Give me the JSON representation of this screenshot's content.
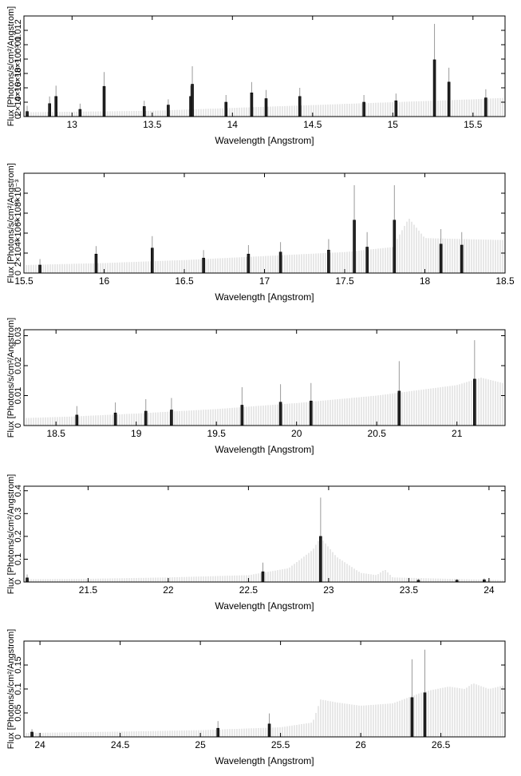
{
  "chart_data": [
    {
      "type": "bar",
      "xlabel": "Wavelength [Angstrom]",
      "ylabel": "Flux [Photons/s/cm²/Angstrom]",
      "xlim": [
        12.7,
        15.7
      ],
      "ylim": [
        0,
        0.014
      ],
      "xticks": [
        13,
        13.5,
        14,
        14.5,
        15,
        15.5
      ],
      "xtick_labels": [
        "13",
        "13.5",
        "14",
        "14.5",
        "15",
        "15.5"
      ],
      "yticks": [
        0,
        0.002,
        0.004,
        0.006,
        0.008,
        0.01,
        0.012
      ],
      "ytick_labels": [
        "0",
        "2×10⁻³",
        "4×10⁻³",
        "6×10⁻³",
        "8×10⁻³",
        "0.01",
        "0.012"
      ],
      "model": [
        [
          12.7,
          0.0006
        ],
        [
          13.5,
          0.0008
        ],
        [
          14.0,
          0.0012
        ],
        [
          14.5,
          0.0016
        ],
        [
          15.0,
          0.002
        ],
        [
          15.5,
          0.0024
        ],
        [
          15.7,
          0.0026
        ]
      ],
      "points": [
        {
          "x": 12.72,
          "y": 0.0007,
          "err": 0.0008
        },
        {
          "x": 12.86,
          "y": 0.0018,
          "err": 0.001
        },
        {
          "x": 12.9,
          "y": 0.0028,
          "err": 0.0015
        },
        {
          "x": 13.05,
          "y": 0.001,
          "err": 0.0008
        },
        {
          "x": 13.2,
          "y": 0.0042,
          "err": 0.002
        },
        {
          "x": 13.45,
          "y": 0.0014,
          "err": 0.0008
        },
        {
          "x": 13.6,
          "y": 0.0016,
          "err": 0.0008
        },
        {
          "x": 13.74,
          "y": 0.0028,
          "err": 0.0015
        },
        {
          "x": 13.75,
          "y": 0.0045,
          "err": 0.0025
        },
        {
          "x": 13.96,
          "y": 0.002,
          "err": 0.001
        },
        {
          "x": 14.12,
          "y": 0.0033,
          "err": 0.0015
        },
        {
          "x": 14.21,
          "y": 0.0025,
          "err": 0.0012
        },
        {
          "x": 14.42,
          "y": 0.0028,
          "err": 0.0012
        },
        {
          "x": 14.82,
          "y": 0.002,
          "err": 0.001
        },
        {
          "x": 15.02,
          "y": 0.0022,
          "err": 0.001
        },
        {
          "x": 15.26,
          "y": 0.0079,
          "err": 0.005
        },
        {
          "x": 15.35,
          "y": 0.0048,
          "err": 0.002
        },
        {
          "x": 15.58,
          "y": 0.0026,
          "err": 0.0012
        }
      ]
    },
    {
      "type": "bar",
      "xlabel": "Wavelength [Angstrom]",
      "ylabel": "Flux [Photons/s/cm²/Angstrom]",
      "xlim": [
        15.5,
        18.5
      ],
      "ylim": [
        0,
        0.01
      ],
      "xticks": [
        15.5,
        16,
        16.5,
        17,
        17.5,
        18,
        18.5
      ],
      "xtick_labels": [
        "15.5",
        "16",
        "16.5",
        "17",
        "17.5",
        "18",
        "18.5"
      ],
      "yticks": [
        0,
        0.002,
        0.004,
        0.006,
        0.008
      ],
      "ytick_labels": [
        "0",
        "2×10⁻³",
        "4×10⁻³",
        "6×10⁻³",
        "8×10⁻³"
      ],
      "model": [
        [
          15.5,
          0.0008
        ],
        [
          16.0,
          0.001
        ],
        [
          16.5,
          0.0013
        ],
        [
          17.0,
          0.0017
        ],
        [
          17.5,
          0.0021
        ],
        [
          17.8,
          0.0026
        ],
        [
          17.9,
          0.0055
        ],
        [
          18.0,
          0.0035
        ],
        [
          18.5,
          0.0033
        ]
      ],
      "points": [
        {
          "x": 15.6,
          "y": 0.0008,
          "err": 0.0006
        },
        {
          "x": 15.95,
          "y": 0.0019,
          "err": 0.0008
        },
        {
          "x": 16.3,
          "y": 0.0025,
          "err": 0.0012
        },
        {
          "x": 16.62,
          "y": 0.0015,
          "err": 0.0008
        },
        {
          "x": 16.9,
          "y": 0.0019,
          "err": 0.0009
        },
        {
          "x": 17.1,
          "y": 0.0021,
          "err": 0.001
        },
        {
          "x": 17.4,
          "y": 0.0023,
          "err": 0.0011
        },
        {
          "x": 17.56,
          "y": 0.0053,
          "err": 0.0035
        },
        {
          "x": 17.64,
          "y": 0.0026,
          "err": 0.0015
        },
        {
          "x": 17.81,
          "y": 0.0053,
          "err": 0.0035
        },
        {
          "x": 18.1,
          "y": 0.0029,
          "err": 0.0015
        },
        {
          "x": 18.23,
          "y": 0.0028,
          "err": 0.0013
        }
      ]
    },
    {
      "type": "bar",
      "xlabel": "Wavelength [Angstrom]",
      "ylabel": "Flux [Photons/s/cm²/Angstrom]",
      "xlim": [
        18.3,
        21.3
      ],
      "ylim": [
        0,
        0.032
      ],
      "xticks": [
        18.5,
        19,
        19.5,
        20,
        20.5,
        21
      ],
      "xtick_labels": [
        "18.5",
        "19",
        "19.5",
        "20",
        "20.5",
        "21"
      ],
      "yticks": [
        0,
        0.01,
        0.02,
        0.03
      ],
      "ytick_labels": [
        "0",
        "0.01",
        "0.02",
        "0.03"
      ],
      "model": [
        [
          18.3,
          0.0025
        ],
        [
          18.6,
          0.003
        ],
        [
          19.0,
          0.004
        ],
        [
          19.5,
          0.0055
        ],
        [
          20.0,
          0.0075
        ],
        [
          20.5,
          0.01
        ],
        [
          21.0,
          0.0135
        ],
        [
          21.15,
          0.016
        ],
        [
          21.3,
          0.014
        ]
      ],
      "points": [
        {
          "x": 18.63,
          "y": 0.0035,
          "err": 0.003
        },
        {
          "x": 18.87,
          "y": 0.0042,
          "err": 0.0035
        },
        {
          "x": 19.06,
          "y": 0.0048,
          "err": 0.004
        },
        {
          "x": 19.22,
          "y": 0.0052,
          "err": 0.004
        },
        {
          "x": 19.66,
          "y": 0.0068,
          "err": 0.006
        },
        {
          "x": 19.9,
          "y": 0.0078,
          "err": 0.006
        },
        {
          "x": 20.09,
          "y": 0.0082,
          "err": 0.006
        },
        {
          "x": 20.64,
          "y": 0.0115,
          "err": 0.01
        },
        {
          "x": 21.11,
          "y": 0.0155,
          "err": 0.013
        }
      ]
    },
    {
      "type": "bar",
      "xlabel": "Wavelength [Angstrom]",
      "ylabel": "Flux [Photons/s/cm²/Angstrom]",
      "xlim": [
        21.1,
        24.1
      ],
      "ylim": [
        0,
        0.42
      ],
      "xticks": [
        21.5,
        22,
        22.5,
        23,
        23.5,
        24
      ],
      "xtick_labels": [
        "21.5",
        "22",
        "22.5",
        "23",
        "23.5",
        "24"
      ],
      "yticks": [
        0,
        0.1,
        0.2,
        0.3,
        0.4
      ],
      "ytick_labels": [
        "0",
        "0.1",
        "0.2",
        "0.3",
        "0.4"
      ],
      "model": [
        [
          21.1,
          0.012
        ],
        [
          21.5,
          0.014
        ],
        [
          22.0,
          0.02
        ],
        [
          22.5,
          0.03
        ],
        [
          22.75,
          0.06
        ],
        [
          22.9,
          0.14
        ],
        [
          22.95,
          0.195
        ],
        [
          23.05,
          0.11
        ],
        [
          23.2,
          0.04
        ],
        [
          23.3,
          0.03
        ],
        [
          23.35,
          0.055
        ],
        [
          23.4,
          0.02
        ],
        [
          24.1,
          0.008
        ]
      ],
      "points": [
        {
          "x": 21.12,
          "y": 0.018,
          "err": 0.015
        },
        {
          "x": 22.59,
          "y": 0.045,
          "err": 0.04
        },
        {
          "x": 22.95,
          "y": 0.2,
          "err": 0.17
        },
        {
          "x": 23.56,
          "y": 0.008,
          "err": 0.005
        },
        {
          "x": 23.8,
          "y": 0.008,
          "err": 0.005
        },
        {
          "x": 23.97,
          "y": 0.01,
          "err": 0.006
        }
      ]
    },
    {
      "type": "bar",
      "xlabel": "Wavelength [Angstrom]",
      "ylabel": "Flux [Photons/s/cm²/Angstrom]",
      "xlim": [
        23.9,
        26.9
      ],
      "ylim": [
        0,
        0.2
      ],
      "xticks": [
        24,
        24.5,
        25,
        25.5,
        26,
        26.5
      ],
      "xtick_labels": [
        "24",
        "24.5",
        "25",
        "25.5",
        "26",
        "26.5"
      ],
      "yticks": [
        0,
        0.05,
        0.1,
        0.15
      ],
      "ytick_labels": [
        "0",
        "0.05",
        "0.1",
        "0.15"
      ],
      "model": [
        [
          23.9,
          0.008
        ],
        [
          24.5,
          0.011
        ],
        [
          25.0,
          0.014
        ],
        [
          25.5,
          0.02
        ],
        [
          25.7,
          0.03
        ],
        [
          25.75,
          0.078
        ],
        [
          25.85,
          0.072
        ],
        [
          26.0,
          0.065
        ],
        [
          26.2,
          0.07
        ],
        [
          26.4,
          0.095
        ],
        [
          26.55,
          0.105
        ],
        [
          26.65,
          0.1
        ],
        [
          26.7,
          0.112
        ],
        [
          26.8,
          0.1
        ],
        [
          26.9,
          0.108
        ]
      ],
      "points": [
        {
          "x": 23.95,
          "y": 0.01,
          "err": 0.006
        },
        {
          "x": 25.11,
          "y": 0.018,
          "err": 0.015
        },
        {
          "x": 25.43,
          "y": 0.027,
          "err": 0.022
        },
        {
          "x": 26.32,
          "y": 0.082,
          "err": 0.08
        },
        {
          "x": 26.4,
          "y": 0.092,
          "err": 0.09
        }
      ]
    }
  ]
}
